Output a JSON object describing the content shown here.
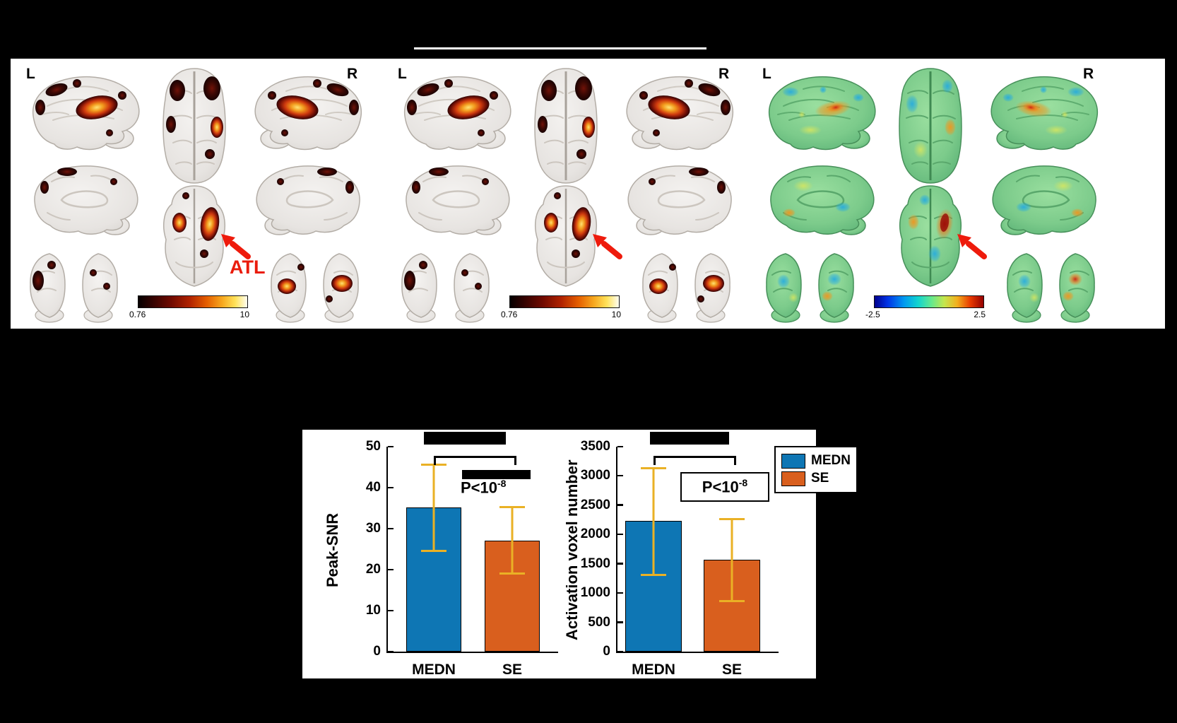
{
  "figure": {
    "background": "#000000",
    "panel_background": "#ffffff"
  },
  "brain_panels": [
    {
      "left_label": "L",
      "right_label": "R",
      "scheme": "hot",
      "colorbar": {
        "min": "0.76",
        "max": "10",
        "scheme": "hot"
      },
      "annotation": "ATL"
    },
    {
      "left_label": "L",
      "right_label": "R",
      "scheme": "hot",
      "colorbar": {
        "min": "0.76",
        "max": "10",
        "scheme": "hot"
      }
    },
    {
      "left_label": "L",
      "right_label": "R",
      "scheme": "jet",
      "colorbar": {
        "min": "-2.5",
        "max": "2.5",
        "scheme": "jet"
      }
    }
  ],
  "chart_data": [
    {
      "type": "bar",
      "categories": [
        "MEDN",
        "SE"
      ],
      "values": [
        35.2,
        27.0
      ],
      "errors_low": [
        10.9,
        8.2
      ],
      "errors_high": [
        10.6,
        8.5
      ],
      "ylabel": "Peak-SNR",
      "ylim": [
        0,
        50
      ],
      "yticks": [
        0,
        10,
        20,
        30,
        40,
        50
      ],
      "bar_colors": [
        "#0e76b4",
        "#d95f1e"
      ],
      "error_color": "#eab125",
      "significance_base": "P<10",
      "significance_exp": "-8",
      "legend_position": "none",
      "grid": false
    },
    {
      "type": "bar",
      "categories": [
        "MEDN",
        "SE"
      ],
      "values": [
        2230,
        1570
      ],
      "errors_low": [
        940,
        725
      ],
      "errors_high": [
        920,
        710
      ],
      "ylabel": "Activation voxel number",
      "ylim": [
        0,
        3500
      ],
      "yticks": [
        0,
        500,
        1000,
        1500,
        2000,
        2500,
        3000,
        3500
      ],
      "bar_colors": [
        "#0e76b4",
        "#d95f1e"
      ],
      "error_color": "#eab125",
      "significance_base": "P<10",
      "significance_exp": "-8",
      "legend_position": "top-right",
      "grid": false
    }
  ],
  "legend": {
    "entries": [
      {
        "label": "MEDN",
        "color": "#0e76b4"
      },
      {
        "label": "SE",
        "color": "#d95f1e"
      }
    ]
  }
}
